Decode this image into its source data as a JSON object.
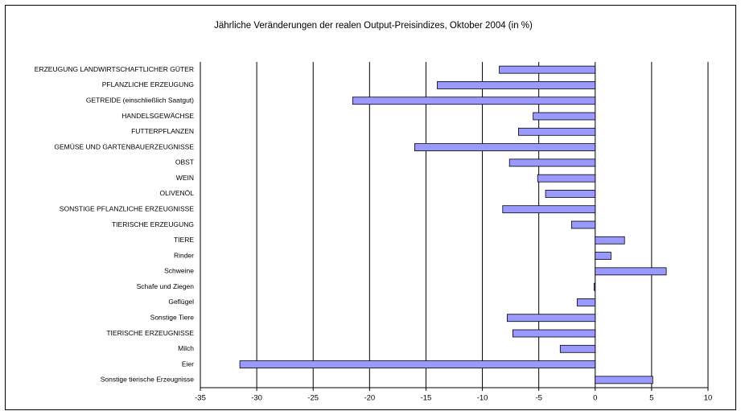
{
  "chart_data": {
    "type": "bar",
    "orientation": "horizontal",
    "title": "Jährliche Veränderungen der realen Output-Preisindizes, Oktober 2004 (in %)",
    "categories": [
      "ERZEUGUNG LANDWIRTSCHAFTLICHER GÜTER",
      "PFLANZLICHE ERZEUGUNG",
      "GETREIDE (einschließlich Saatgut)",
      "HANDELSGEWÄCHSE",
      "FUTTERPFLANZEN",
      "GEMÜSE UND GARTENBAUERZEUGNISSE",
      "OBST",
      "WEIN",
      "OLIVENÖL",
      "SONSTIGE PFLANZLICHE ERZEUGNISSE",
      "TIERISCHE ERZEUGUNG",
      "TIERE",
      "Rinder",
      "Schweine",
      "Schafe und Ziegen",
      "Geflügel",
      "Sonstige Tiere",
      "TIERISCHE ERZEUGNISSE",
      "Milch",
      "Eier",
      "Sonstige tierische Erzeugnisse"
    ],
    "values": [
      -8.5,
      -14.0,
      -21.5,
      -5.5,
      -6.8,
      -16.0,
      -7.6,
      -5.1,
      -4.4,
      -8.2,
      -2.1,
      2.6,
      1.4,
      6.3,
      -0.1,
      -1.6,
      -7.8,
      -7.3,
      -3.1,
      -31.5,
      5.1
    ],
    "color": "#9999ff",
    "xlim": [
      -35,
      10
    ],
    "xticks": [
      -35,
      -30,
      -25,
      -20,
      -15,
      -10,
      -5,
      0,
      5,
      10
    ],
    "grid": true
  }
}
